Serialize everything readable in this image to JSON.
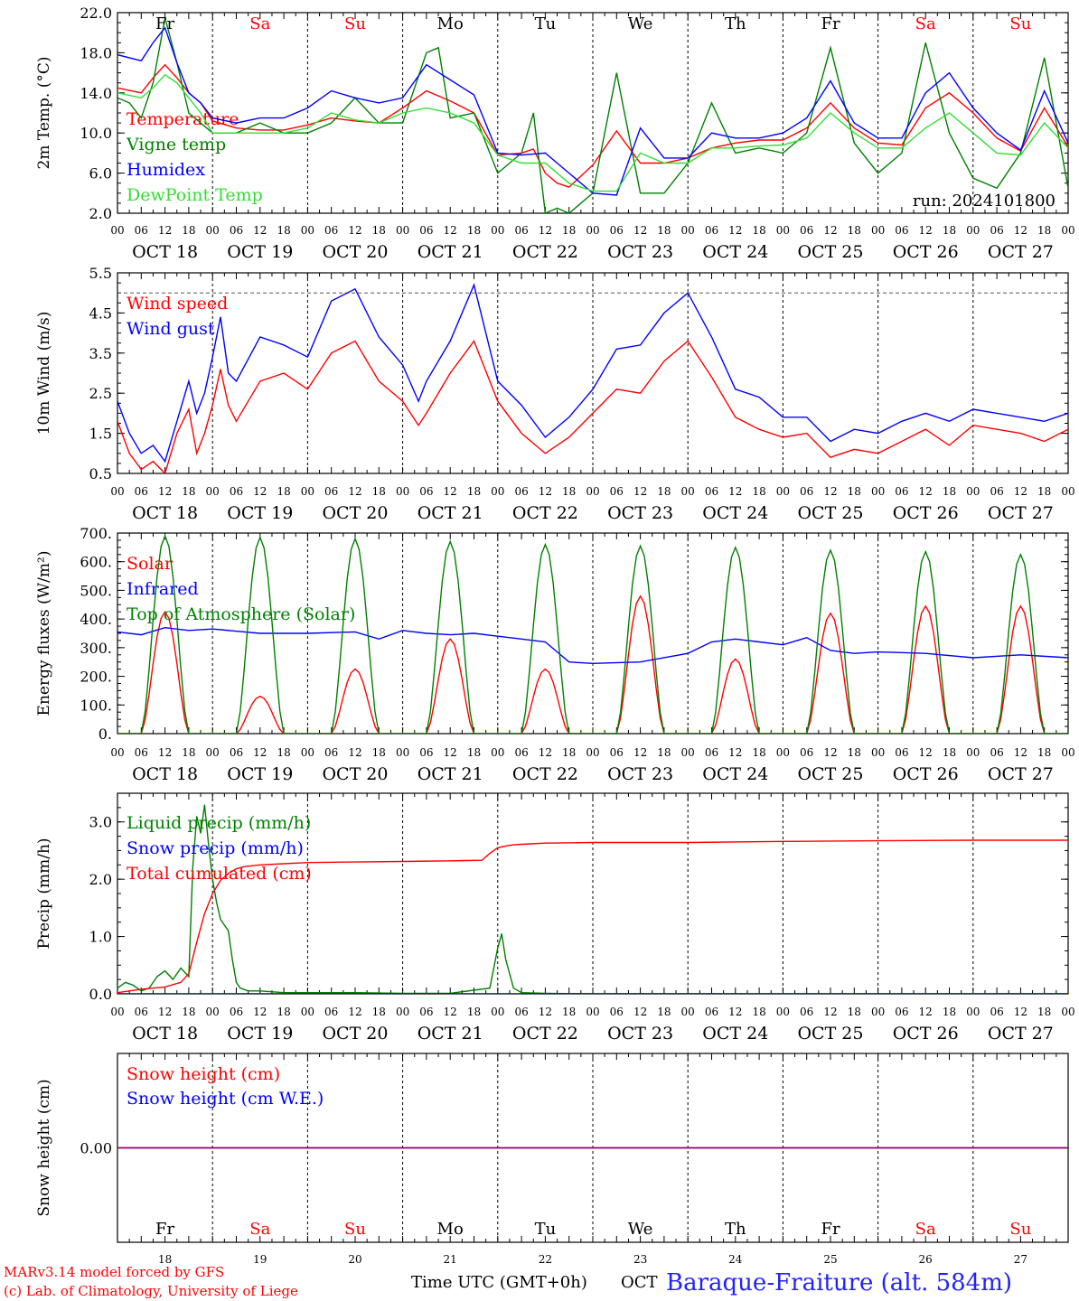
{
  "colors": {
    "red": "#ff0000",
    "blue": "#0000ff",
    "green": "#008000",
    "lightgreen": "#33dd33",
    "purple": "#800080",
    "axis": "#000000",
    "title": "#2222ff"
  },
  "days": [
    {
      "dow": "Fr",
      "date": "OCT 18",
      "num": "18",
      "weekend": false
    },
    {
      "dow": "Sa",
      "date": "OCT 19",
      "num": "19",
      "weekend": true
    },
    {
      "dow": "Su",
      "date": "OCT 20",
      "num": "20",
      "weekend": true
    },
    {
      "dow": "Mo",
      "date": "OCT 21",
      "num": "21",
      "weekend": false
    },
    {
      "dow": "Tu",
      "date": "OCT 22",
      "num": "22",
      "weekend": false
    },
    {
      "dow": "We",
      "date": "OCT 23",
      "num": "23",
      "weekend": false
    },
    {
      "dow": "Th",
      "date": "OCT 24",
      "num": "24",
      "weekend": false
    },
    {
      "dow": "Fr",
      "date": "OCT 25",
      "num": "25",
      "weekend": false
    },
    {
      "dow": "Sa",
      "date": "OCT 26",
      "num": "26",
      "weekend": true
    },
    {
      "dow": "Su",
      "date": "OCT 27",
      "num": "27",
      "weekend": true
    }
  ],
  "hour_labels": [
    "00",
    "06",
    "12",
    "18"
  ],
  "hour_end": "00",
  "footer": {
    "model": "MARv3.14 model forced by GFS",
    "credit": "(c) Lab. of Climatology, University of Liege",
    "xlabel": "Time UTC (GMT+0h)",
    "month": "OCT",
    "station": "Baraque-Fraiture (alt. 584m)"
  },
  "chart_data": [
    {
      "type": "line",
      "ylabel": "2m Temp. (°C)",
      "ylim": [
        2,
        22
      ],
      "yticks": [
        "2.0",
        "6.0",
        "10.0",
        "14.0",
        "18.0",
        "22.0"
      ],
      "ytick_values": [
        2,
        6,
        10,
        14,
        18,
        22
      ],
      "annotation": "run: 2024101800",
      "x_unit": "hours since 2024-10-18 00 UTC",
      "series": [
        {
          "name": "Temperature",
          "color": "red",
          "x": [
            0,
            6,
            9,
            12,
            15,
            18,
            21,
            24,
            30,
            36,
            42,
            48,
            54,
            60,
            66,
            72,
            78,
            84,
            90,
            96,
            102,
            105,
            108,
            111,
            114,
            120,
            126,
            132,
            138,
            144,
            150,
            156,
            162,
            168,
            174,
            180,
            186,
            192,
            198,
            204,
            210,
            216,
            222,
            228,
            234,
            240
          ],
          "y": [
            14.5,
            14,
            15.5,
            16.8,
            15.5,
            14,
            13,
            11.2,
            10.5,
            10.3,
            10.3,
            10.8,
            11.5,
            11.2,
            11,
            12.5,
            14.2,
            13.2,
            12,
            7.8,
            8,
            8.4,
            6,
            5,
            4.6,
            6.8,
            10.2,
            7,
            7,
            7.5,
            8.5,
            9,
            9.3,
            9.3,
            10.5,
            13,
            10.5,
            9,
            8.8,
            12.5,
            14,
            12,
            9.5,
            8.2,
            12.5,
            8.6
          ]
        },
        {
          "name": "Vigne temp",
          "color": "green",
          "x": [
            0,
            3,
            6,
            9,
            12,
            15,
            18,
            21,
            24,
            30,
            36,
            42,
            48,
            54,
            60,
            66,
            72,
            78,
            81,
            84,
            90,
            96,
            102,
            105,
            108,
            111,
            114,
            120,
            126,
            132,
            138,
            144,
            150,
            156,
            162,
            168,
            174,
            180,
            186,
            192,
            198,
            204,
            210,
            216,
            222,
            228,
            234,
            240
          ],
          "y": [
            13.5,
            13,
            11.5,
            15,
            21.5,
            17,
            12,
            11,
            10,
            10,
            11,
            10,
            10,
            11,
            13.5,
            11,
            11,
            18,
            18.5,
            11.5,
            12,
            6,
            8,
            12,
            2,
            2.5,
            2,
            4,
            16,
            4,
            4,
            7,
            13,
            8,
            8.5,
            8,
            10,
            18.5,
            9,
            6,
            8,
            19,
            10,
            5.5,
            4.5,
            8,
            17.5,
            4.5
          ]
        },
        {
          "name": "Humidex",
          "color": "blue",
          "x": [
            0,
            6,
            9,
            12,
            15,
            18,
            21,
            24,
            30,
            36,
            42,
            48,
            54,
            60,
            66,
            72,
            78,
            84,
            90,
            96,
            102,
            108,
            114,
            120,
            126,
            132,
            138,
            144,
            150,
            156,
            162,
            168,
            174,
            180,
            186,
            192,
            198,
            204,
            210,
            216,
            222,
            228,
            234,
            240
          ],
          "y": [
            17.8,
            17.2,
            19,
            20.5,
            17,
            14,
            13,
            11.5,
            11,
            11.5,
            11.5,
            12.5,
            14.2,
            13.5,
            13,
            13.5,
            16.8,
            15.3,
            13.8,
            8,
            7.8,
            8,
            6,
            4,
            3.8,
            10.5,
            7.5,
            7.5,
            10,
            9.5,
            9.5,
            10,
            11.5,
            15.2,
            11,
            9.5,
            9.5,
            14,
            16,
            12.5,
            10,
            8.3,
            14.2,
            9
          ]
        },
        {
          "name": "DewPoint Temp",
          "color": "lightgreen",
          "x": [
            0,
            6,
            9,
            12,
            15,
            18,
            21,
            24,
            30,
            36,
            42,
            48,
            54,
            60,
            66,
            72,
            78,
            84,
            90,
            96,
            102,
            108,
            114,
            120,
            126,
            132,
            138,
            144,
            150,
            156,
            162,
            168,
            174,
            180,
            186,
            192,
            198,
            204,
            210,
            216,
            222,
            228,
            234,
            240
          ],
          "y": [
            14,
            13.5,
            14.5,
            15.8,
            15,
            13.5,
            12,
            10,
            10,
            10,
            10,
            10.5,
            12,
            11.3,
            11,
            12,
            12.5,
            12,
            11,
            7.8,
            7,
            7,
            5,
            4.2,
            4.2,
            8,
            7,
            7,
            8.5,
            8.5,
            8.7,
            8.8,
            9.5,
            12,
            10,
            8.5,
            8.5,
            10.5,
            12,
            10,
            8,
            7.8,
            11,
            8.5
          ]
        }
      ]
    },
    {
      "type": "line",
      "ylabel": "10m Wind (m/s)",
      "ylim": [
        0.5,
        5.5
      ],
      "yticks": [
        "0.5",
        "1.5",
        "2.5",
        "3.5",
        "4.5",
        "5.5"
      ],
      "ytick_values": [
        0.5,
        1.5,
        2.5,
        3.5,
        4.5,
        5.5
      ],
      "reference_line": 5.0,
      "x_unit": "hours since 2024-10-18 00 UTC",
      "series": [
        {
          "name": "Wind speed",
          "color": "red",
          "x": [
            0,
            3,
            6,
            9,
            12,
            15,
            18,
            20,
            22,
            24,
            26,
            28,
            30,
            36,
            42,
            48,
            54,
            60,
            66,
            72,
            76,
            78,
            84,
            90,
            96,
            102,
            108,
            114,
            120,
            126,
            132,
            138,
            144,
            150,
            156,
            162,
            168,
            174,
            180,
            186,
            192,
            198,
            204,
            210,
            216,
            222,
            228,
            234,
            240
          ],
          "y": [
            1.8,
            1,
            0.6,
            0.8,
            0.5,
            1.5,
            2.1,
            1,
            1.5,
            2.2,
            3.1,
            2.2,
            1.8,
            2.8,
            3,
            2.6,
            3.5,
            3.8,
            2.8,
            2.3,
            1.7,
            2,
            3,
            3.8,
            2.3,
            1.5,
            1.0,
            1.4,
            2.0,
            2.6,
            2.5,
            3.3,
            3.8,
            2.9,
            1.9,
            1.6,
            1.4,
            1.5,
            0.9,
            1.1,
            1.0,
            1.3,
            1.6,
            1.2,
            1.7,
            1.6,
            1.5,
            1.3,
            1.6
          ]
        },
        {
          "name": "Wind gust",
          "color": "blue",
          "x": [
            0,
            3,
            6,
            9,
            12,
            15,
            18,
            20,
            22,
            24,
            26,
            28,
            30,
            36,
            42,
            48,
            54,
            60,
            66,
            72,
            76,
            78,
            84,
            90,
            96,
            102,
            108,
            114,
            120,
            126,
            132,
            138,
            144,
            150,
            156,
            162,
            168,
            174,
            180,
            186,
            192,
            198,
            204,
            210,
            216,
            222,
            228,
            234,
            240
          ],
          "y": [
            2.3,
            1.5,
            1.0,
            1.2,
            0.8,
            1.8,
            2.8,
            2,
            2.5,
            3.4,
            4.4,
            3,
            2.8,
            3.9,
            3.7,
            3.4,
            4.8,
            5.1,
            3.9,
            3.2,
            2.3,
            2.8,
            3.8,
            5.2,
            2.8,
            2.2,
            1.4,
            1.9,
            2.6,
            3.6,
            3.7,
            4.5,
            5.0,
            3.9,
            2.6,
            2.4,
            1.9,
            1.9,
            1.3,
            1.6,
            1.5,
            1.8,
            2.0,
            1.8,
            2.1,
            2.0,
            1.9,
            1.8,
            2.0
          ]
        }
      ]
    },
    {
      "type": "line",
      "ylabel": "Energy fluxes (W/m²)",
      "ylim": [
        0,
        700
      ],
      "yticks": [
        "0.",
        "100.",
        "200.",
        "300.",
        "400.",
        "500.",
        "600.",
        "700."
      ],
      "ytick_values": [
        0,
        100,
        200,
        300,
        400,
        500,
        600,
        700
      ],
      "x_unit": "hours since 2024-10-18 00 UTC",
      "series": [
        {
          "name": "Solar",
          "color": "red",
          "daily_peak": [
            425,
            130,
            225,
            330,
            225,
            480,
            260,
            420,
            445,
            445
          ]
        },
        {
          "name": "Infrared",
          "color": "blue",
          "x": [
            0,
            6,
            12,
            18,
            24,
            36,
            48,
            60,
            66,
            72,
            78,
            84,
            90,
            96,
            102,
            108,
            114,
            120,
            132,
            144,
            150,
            156,
            162,
            168,
            174,
            180,
            186,
            192,
            204,
            216,
            228,
            240
          ],
          "y": [
            355,
            345,
            370,
            360,
            365,
            350,
            350,
            355,
            330,
            360,
            350,
            345,
            350,
            340,
            330,
            320,
            250,
            245,
            250,
            280,
            320,
            330,
            320,
            310,
            335,
            290,
            280,
            285,
            280,
            265,
            275,
            265
          ]
        },
        {
          "name": "Top of Atmosphere (Solar)",
          "color": "green",
          "daily_peak": [
            690,
            685,
            680,
            670,
            660,
            655,
            650,
            640,
            635,
            625
          ]
        }
      ]
    },
    {
      "type": "line",
      "ylabel": "Precip (mm/h)",
      "ylim": [
        0,
        3.5
      ],
      "yticks": [
        "0.0",
        "1.0",
        "2.0",
        "3.0"
      ],
      "ytick_values": [
        0,
        1,
        2,
        3
      ],
      "x_unit": "hours since 2024-10-18 00 UTC",
      "series": [
        {
          "name": "Liquid precip (mm/h)",
          "color": "green",
          "x": [
            0,
            2,
            4,
            6,
            8,
            10,
            12,
            14,
            16,
            18,
            19,
            20,
            21,
            22,
            23,
            24,
            25,
            26,
            27,
            28,
            29,
            30,
            31,
            33,
            36,
            42,
            48,
            60,
            72,
            84,
            94,
            96,
            97,
            98,
            100,
            102,
            108,
            120,
            144,
            168,
            192,
            216,
            240
          ],
          "y": [
            0.1,
            0.2,
            0.15,
            0.05,
            0.1,
            0.3,
            0.4,
            0.25,
            0.45,
            0.3,
            2.2,
            3.1,
            2.8,
            3.3,
            2.6,
            2.0,
            1.6,
            1.3,
            1.2,
            1.1,
            0.6,
            0.2,
            0.1,
            0.05,
            0.05,
            0.02,
            0.02,
            0.02,
            0.01,
            0.01,
            0.1,
            0.8,
            1.05,
            0.6,
            0.1,
            0.02,
            0.01,
            0,
            0,
            0,
            0,
            0,
            0
          ]
        },
        {
          "name": "Snow precip (mm/h)",
          "color": "blue",
          "x": [
            0,
            240
          ],
          "y": [
            0,
            0
          ]
        },
        {
          "name": "Total cumulated (cm)",
          "color": "red",
          "x": [
            0,
            6,
            12,
            16,
            18,
            20,
            22,
            24,
            26,
            28,
            30,
            32,
            36,
            42,
            48,
            60,
            72,
            84,
            92,
            94,
            96,
            98,
            100,
            102,
            108,
            120,
            144,
            168,
            192,
            216,
            240
          ],
          "y": [
            0.02,
            0.08,
            0.12,
            0.2,
            0.35,
            0.9,
            1.4,
            1.75,
            1.98,
            2.1,
            2.18,
            2.22,
            2.25,
            2.27,
            2.29,
            2.3,
            2.31,
            2.32,
            2.33,
            2.45,
            2.55,
            2.58,
            2.6,
            2.61,
            2.63,
            2.64,
            2.64,
            2.66,
            2.67,
            2.68,
            2.68
          ]
        }
      ]
    },
    {
      "type": "line",
      "ylabel": "Snow height (cm)",
      "yticks": [
        "0.00"
      ],
      "ytick_values": [
        0
      ],
      "ylim": [
        -1,
        1
      ],
      "x_unit": "hours since 2024-10-18 00 UTC",
      "series": [
        {
          "name": "Snow height (cm)",
          "color": "red",
          "x": [
            0,
            240
          ],
          "y": [
            0,
            0
          ]
        },
        {
          "name": "Snow height (cm W.E.)",
          "color": "blue",
          "x": [
            0,
            240
          ],
          "y": [
            0,
            0
          ]
        }
      ]
    }
  ]
}
